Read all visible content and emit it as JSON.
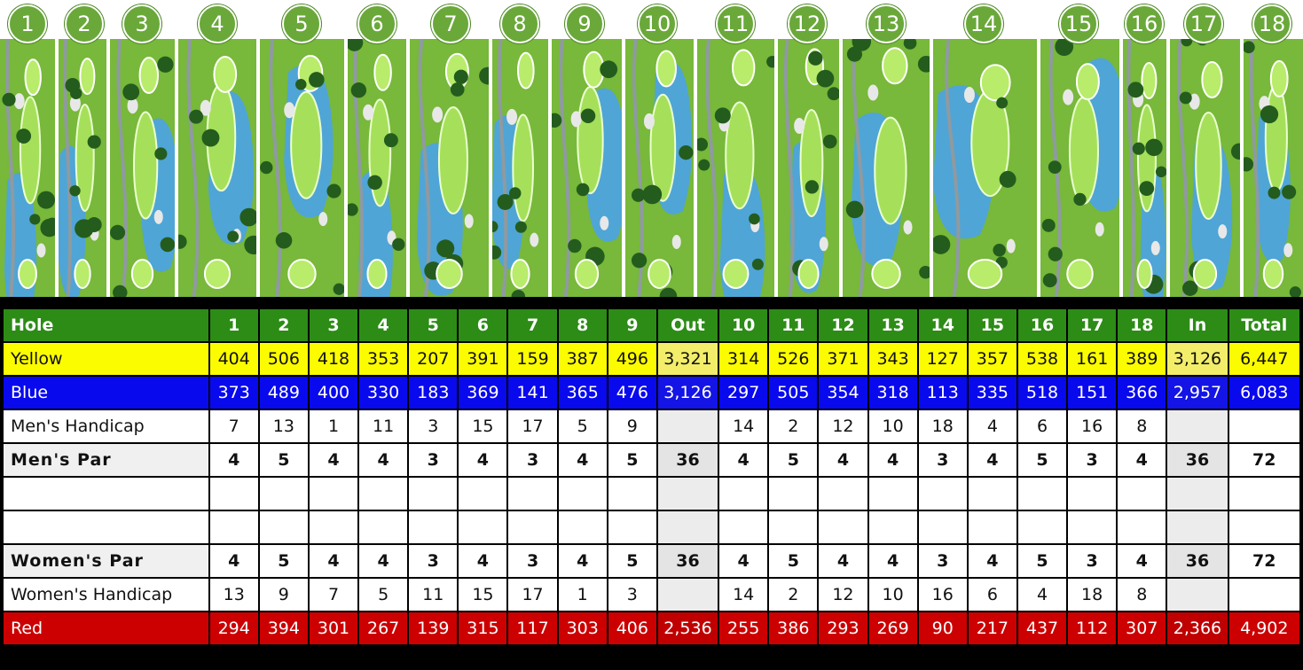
{
  "holes": [
    "1",
    "2",
    "3",
    "4",
    "5",
    "6",
    "7",
    "8",
    "9",
    "10",
    "11",
    "12",
    "13",
    "14",
    "15",
    "16",
    "17",
    "18"
  ],
  "scorecard": {
    "header": [
      "Hole",
      "1",
      "2",
      "3",
      "4",
      "5",
      "6",
      "7",
      "8",
      "9",
      "Out",
      "10",
      "11",
      "12",
      "13",
      "14",
      "15",
      "16",
      "17",
      "18",
      "In",
      "Total"
    ],
    "rows": [
      {
        "kind": "yellow",
        "cells": [
          "Yellow",
          "404",
          "506",
          "418",
          "353",
          "207",
          "391",
          "159",
          "387",
          "496",
          "3,321",
          "314",
          "526",
          "371",
          "343",
          "127",
          "357",
          "538",
          "161",
          "389",
          "3,126",
          "6,447"
        ]
      },
      {
        "kind": "blue",
        "cells": [
          "Blue",
          "373",
          "489",
          "400",
          "330",
          "183",
          "369",
          "141",
          "365",
          "476",
          "3,126",
          "297",
          "505",
          "354",
          "318",
          "113",
          "335",
          "518",
          "151",
          "366",
          "2,957",
          "6,083"
        ]
      },
      {
        "kind": "hcp",
        "cells": [
          "Men's Handicap",
          "7",
          "13",
          "1",
          "11",
          "3",
          "15",
          "17",
          "5",
          "9",
          "",
          "14",
          "2",
          "12",
          "10",
          "18",
          "4",
          "6",
          "16",
          "8",
          "",
          ""
        ]
      },
      {
        "kind": "par",
        "cells": [
          "Men's Par",
          "4",
          "5",
          "4",
          "4",
          "3",
          "4",
          "3",
          "4",
          "5",
          "36",
          "4",
          "5",
          "4",
          "4",
          "3",
          "4",
          "5",
          "3",
          "4",
          "36",
          "72"
        ]
      },
      {
        "kind": "plain",
        "cells": [
          "",
          "",
          "",
          "",
          "",
          "",
          "",
          "",
          "",
          "",
          "",
          "",
          "",
          "",
          "",
          "",
          "",
          "",
          "",
          "",
          "",
          ""
        ]
      },
      {
        "kind": "plain",
        "cells": [
          "",
          "",
          "",
          "",
          "",
          "",
          "",
          "",
          "",
          "",
          "",
          "",
          "",
          "",
          "",
          "",
          "",
          "",
          "",
          "",
          "",
          ""
        ]
      },
      {
        "kind": "par",
        "cells": [
          "Women's Par",
          "4",
          "5",
          "4",
          "4",
          "3",
          "4",
          "3",
          "4",
          "5",
          "36",
          "4",
          "5",
          "4",
          "4",
          "3",
          "4",
          "5",
          "3",
          "4",
          "36",
          "72"
        ]
      },
      {
        "kind": "hcp",
        "cells": [
          "Women's Handicap",
          "13",
          "9",
          "7",
          "5",
          "11",
          "15",
          "17",
          "1",
          "3",
          "",
          "14",
          "2",
          "12",
          "10",
          "16",
          "6",
          "4",
          "18",
          "8",
          "",
          ""
        ]
      },
      {
        "kind": "red",
        "cells": [
          "Red",
          "294",
          "394",
          "301",
          "267",
          "139",
          "315",
          "117",
          "303",
          "406",
          "2,536",
          "255",
          "386",
          "293",
          "269",
          "90",
          "217",
          "437",
          "112",
          "307",
          "2,366",
          "4,902"
        ]
      }
    ]
  },
  "colors": {
    "hole_header": "#2c8c16",
    "yellow": "#fcfc00",
    "blue": "#0909ee",
    "red": "#cc0000",
    "badge": "#6aa83a",
    "water": "#4aa3e8",
    "rough": "#78b83a",
    "fairway": "#a6e05a"
  }
}
